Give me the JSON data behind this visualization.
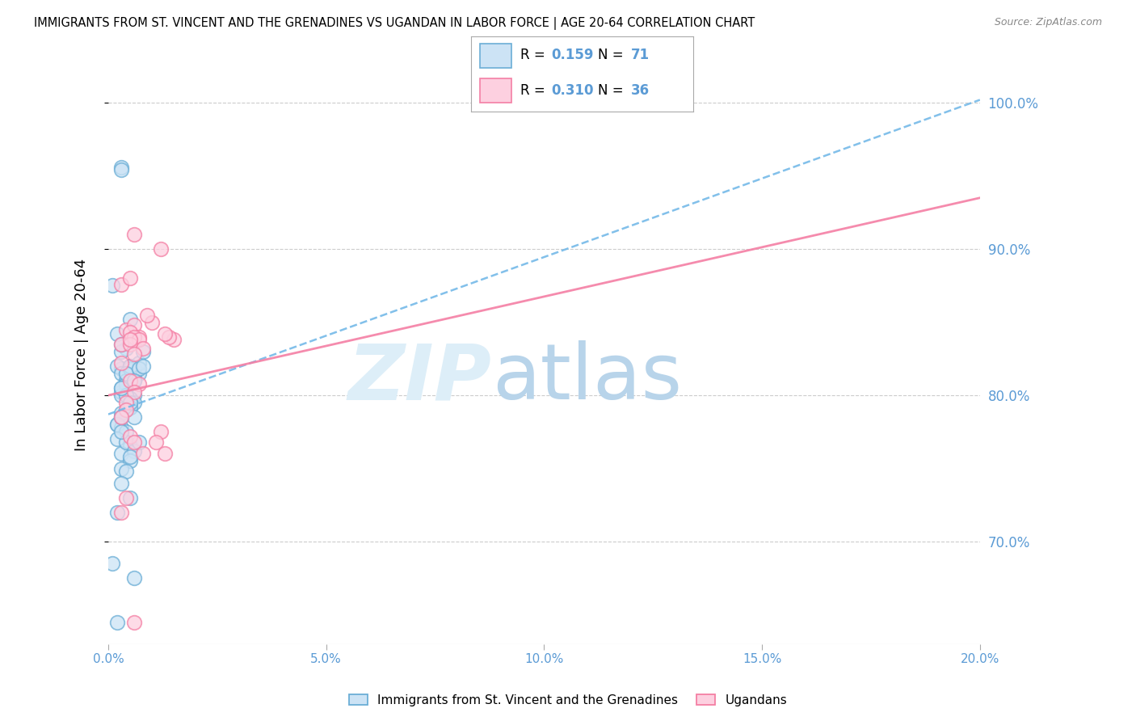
{
  "title": "IMMIGRANTS FROM ST. VINCENT AND THE GRENADINES VS UGANDAN IN LABOR FORCE | AGE 20-64 CORRELATION CHART",
  "source": "Source: ZipAtlas.com",
  "ylabel": "In Labor Force | Age 20-64",
  "xlim": [
    0.0,
    0.2
  ],
  "ylim": [
    0.63,
    1.025
  ],
  "yticks": [
    0.7,
    0.8,
    0.9,
    1.0
  ],
  "xticks": [
    0.0,
    0.05,
    0.1,
    0.15,
    0.2
  ],
  "xtick_labels": [
    "0.0%",
    "5.0%",
    "10.0%",
    "15.0%",
    "20.0%"
  ],
  "ytick_labels": [
    "70.0%",
    "80.0%",
    "90.0%",
    "100.0%"
  ],
  "legend1_R": "0.159",
  "legend1_N": "71",
  "legend2_R": "0.310",
  "legend2_N": "36",
  "legend1_label": "Immigrants from St. Vincent and the Grenadines",
  "legend2_label": "Ugandans",
  "blue_color": "#6baed6",
  "pink_color": "#f47fa4",
  "trend_blue_color": "#74b9e8",
  "trend_pink_color": "#f47fa4",
  "axis_label_color": "#5b9bd5",
  "grid_color": "#cccccc",
  "blue_legend_fill": "#cce3f5",
  "pink_legend_fill": "#fdd0e0",
  "blue_x": [
    0.001,
    0.002,
    0.003,
    0.003,
    0.004,
    0.003,
    0.003,
    0.002,
    0.004,
    0.004,
    0.003,
    0.005,
    0.005,
    0.004,
    0.003,
    0.005,
    0.007,
    0.006,
    0.003,
    0.004,
    0.002,
    0.003,
    0.004,
    0.005,
    0.006,
    0.003,
    0.004,
    0.005,
    0.006,
    0.003,
    0.002,
    0.004,
    0.005,
    0.003,
    0.006,
    0.004,
    0.005,
    0.003,
    0.002,
    0.004,
    0.006,
    0.005,
    0.003,
    0.004,
    0.007,
    0.005,
    0.004,
    0.003,
    0.005,
    0.006,
    0.003,
    0.007,
    0.005,
    0.004,
    0.006,
    0.008,
    0.005,
    0.004,
    0.003,
    0.007,
    0.002,
    0.006,
    0.005,
    0.003,
    0.001,
    0.004,
    0.006,
    0.003,
    0.005,
    0.008,
    0.002
  ],
  "blue_y": [
    0.875,
    0.842,
    0.956,
    0.954,
    0.832,
    0.83,
    0.818,
    0.82,
    0.815,
    0.812,
    0.835,
    0.852,
    0.81,
    0.808,
    0.802,
    0.792,
    0.815,
    0.8,
    0.785,
    0.79,
    0.78,
    0.778,
    0.81,
    0.82,
    0.818,
    0.815,
    0.805,
    0.798,
    0.795,
    0.788,
    0.78,
    0.775,
    0.765,
    0.76,
    0.812,
    0.808,
    0.795,
    0.785,
    0.77,
    0.768,
    0.762,
    0.755,
    0.75,
    0.81,
    0.822,
    0.818,
    0.808,
    0.8,
    0.792,
    0.785,
    0.775,
    0.768,
    0.758,
    0.748,
    0.81,
    0.83,
    0.82,
    0.815,
    0.805,
    0.818,
    0.72,
    0.675,
    0.73,
    0.74,
    0.685,
    0.8,
    0.81,
    0.805,
    0.795,
    0.82,
    0.645
  ],
  "pink_x": [
    0.006,
    0.003,
    0.005,
    0.012,
    0.004,
    0.006,
    0.005,
    0.007,
    0.003,
    0.006,
    0.007,
    0.005,
    0.008,
    0.006,
    0.003,
    0.005,
    0.007,
    0.006,
    0.004,
    0.015,
    0.004,
    0.003,
    0.014,
    0.013,
    0.005,
    0.012,
    0.006,
    0.011,
    0.003,
    0.004,
    0.005,
    0.013,
    0.008,
    0.006,
    0.01,
    0.009
  ],
  "pink_y": [
    0.91,
    0.876,
    0.88,
    0.9,
    0.845,
    0.848,
    0.843,
    0.84,
    0.835,
    0.84,
    0.838,
    0.835,
    0.832,
    0.828,
    0.822,
    0.81,
    0.808,
    0.802,
    0.795,
    0.838,
    0.79,
    0.785,
    0.84,
    0.842,
    0.772,
    0.775,
    0.768,
    0.768,
    0.72,
    0.73,
    0.838,
    0.76,
    0.76,
    0.645,
    0.85,
    0.855
  ],
  "trend_blue_x0": 0.0,
  "trend_blue_y0": 0.787,
  "trend_blue_x1": 0.2,
  "trend_blue_y1": 1.002,
  "trend_pink_x0": 0.0,
  "trend_pink_y0": 0.8,
  "trend_pink_x1": 0.2,
  "trend_pink_y1": 0.935
}
